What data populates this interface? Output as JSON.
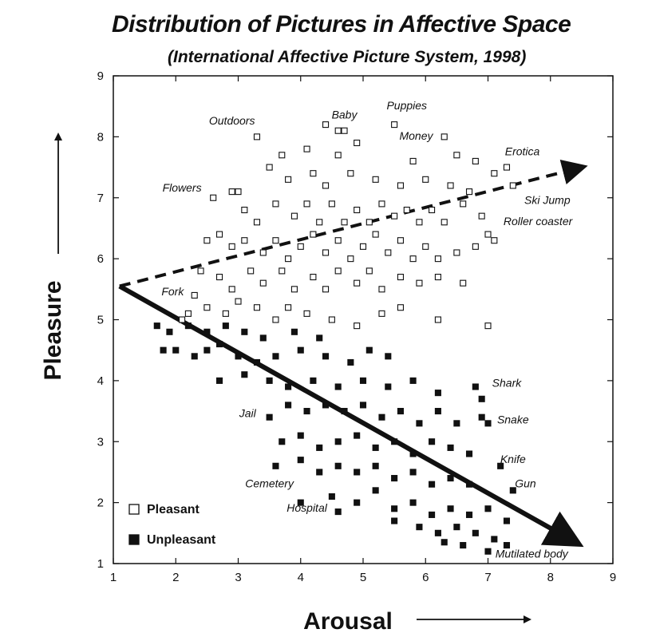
{
  "chart_data": {
    "type": "scatter",
    "title": "Distribution of Pictures in Affective Space",
    "subtitle": "(International Affective Picture System, 1998)",
    "xlabel": "Arousal",
    "ylabel": "Pleasure",
    "xlim": [
      1,
      9
    ],
    "ylim": [
      1,
      9
    ],
    "xticks": [
      "1",
      "2",
      "3",
      "4",
      "5",
      "6",
      "7",
      "8",
      "9"
    ],
    "yticks": [
      "1",
      "2",
      "3",
      "4",
      "5",
      "6",
      "7",
      "8",
      "9"
    ],
    "grid": false,
    "legend_position": "bottom-left",
    "legend": [
      {
        "name": "Pleasant",
        "marker": "open-square"
      },
      {
        "name": "Unpleasant",
        "marker": "filled-square"
      }
    ],
    "trend_lines": [
      {
        "style": "dashed",
        "from": [
          1.1,
          5.55
        ],
        "to": [
          8.5,
          7.5
        ]
      },
      {
        "style": "solid",
        "from": [
          1.1,
          5.55
        ],
        "to": [
          8.4,
          1.35
        ]
      }
    ],
    "annotations": [
      {
        "text": "Outdoors",
        "x": 2.9,
        "y": 8.2
      },
      {
        "text": "Baby",
        "x": 4.7,
        "y": 8.3
      },
      {
        "text": "Puppies",
        "x": 5.7,
        "y": 8.45
      },
      {
        "text": "Money",
        "x": 5.85,
        "y": 7.95
      },
      {
        "text": "Erotica",
        "x": 7.55,
        "y": 7.7
      },
      {
        "text": "Flowers",
        "x": 2.1,
        "y": 7.1
      },
      {
        "text": "Ski Jump",
        "x": 7.95,
        "y": 6.9
      },
      {
        "text": "Roller coaster",
        "x": 7.8,
        "y": 6.55
      },
      {
        "text": "Fork",
        "x": 1.95,
        "y": 5.4
      },
      {
        "text": "Shark",
        "x": 7.3,
        "y": 3.9
      },
      {
        "text": "Jail",
        "x": 3.15,
        "y": 3.4
      },
      {
        "text": "Snake",
        "x": 7.4,
        "y": 3.3
      },
      {
        "text": "Knife",
        "x": 7.4,
        "y": 2.65
      },
      {
        "text": "Cemetery",
        "x": 3.5,
        "y": 2.25
      },
      {
        "text": "Gun",
        "x": 7.6,
        "y": 2.25
      },
      {
        "text": "Hospital",
        "x": 4.1,
        "y": 1.85
      },
      {
        "text": "Mutilated body",
        "x": 7.7,
        "y": 1.1
      }
    ],
    "series": [
      {
        "name": "Pleasant",
        "marker": "open-square",
        "points": [
          [
            3.3,
            8.0
          ],
          [
            4.4,
            8.2
          ],
          [
            4.6,
            8.1
          ],
          [
            4.7,
            8.1
          ],
          [
            5.5,
            8.2
          ],
          [
            6.3,
            8.0
          ],
          [
            3.7,
            7.7
          ],
          [
            4.1,
            7.8
          ],
          [
            4.6,
            7.7
          ],
          [
            4.9,
            7.9
          ],
          [
            5.8,
            7.6
          ],
          [
            6.5,
            7.7
          ],
          [
            6.8,
            7.6
          ],
          [
            7.3,
            7.5
          ],
          [
            2.6,
            7.0
          ],
          [
            2.9,
            7.1
          ],
          [
            3.0,
            7.1
          ],
          [
            3.5,
            7.5
          ],
          [
            3.8,
            7.3
          ],
          [
            4.2,
            7.4
          ],
          [
            4.4,
            7.2
          ],
          [
            4.8,
            7.4
          ],
          [
            5.2,
            7.3
          ],
          [
            5.6,
            7.2
          ],
          [
            6.0,
            7.3
          ],
          [
            6.4,
            7.2
          ],
          [
            6.7,
            7.1
          ],
          [
            7.1,
            7.4
          ],
          [
            7.4,
            7.2
          ],
          [
            3.1,
            6.8
          ],
          [
            3.3,
            6.6
          ],
          [
            3.6,
            6.9
          ],
          [
            3.9,
            6.7
          ],
          [
            4.1,
            6.9
          ],
          [
            4.3,
            6.6
          ],
          [
            4.5,
            6.9
          ],
          [
            4.7,
            6.6
          ],
          [
            4.9,
            6.8
          ],
          [
            5.1,
            6.6
          ],
          [
            5.3,
            6.9
          ],
          [
            5.5,
            6.7
          ],
          [
            5.7,
            6.8
          ],
          [
            5.9,
            6.6
          ],
          [
            6.1,
            6.8
          ],
          [
            6.3,
            6.6
          ],
          [
            6.6,
            6.9
          ],
          [
            6.9,
            6.7
          ],
          [
            7.0,
            6.4
          ],
          [
            2.5,
            6.3
          ],
          [
            2.7,
            6.4
          ],
          [
            2.9,
            6.2
          ],
          [
            3.1,
            6.3
          ],
          [
            3.4,
            6.1
          ],
          [
            3.6,
            6.3
          ],
          [
            3.8,
            6.0
          ],
          [
            4.0,
            6.2
          ],
          [
            4.2,
            6.4
          ],
          [
            4.4,
            6.1
          ],
          [
            4.6,
            6.3
          ],
          [
            4.8,
            6.0
          ],
          [
            5.0,
            6.2
          ],
          [
            5.2,
            6.4
          ],
          [
            5.4,
            6.1
          ],
          [
            5.6,
            6.3
          ],
          [
            5.8,
            6.0
          ],
          [
            6.0,
            6.2
          ],
          [
            6.2,
            6.0
          ],
          [
            6.5,
            6.1
          ],
          [
            6.8,
            6.2
          ],
          [
            7.1,
            6.3
          ],
          [
            2.4,
            5.8
          ],
          [
            2.7,
            5.7
          ],
          [
            2.9,
            5.5
          ],
          [
            3.2,
            5.8
          ],
          [
            3.4,
            5.6
          ],
          [
            3.7,
            5.8
          ],
          [
            3.9,
            5.5
          ],
          [
            4.2,
            5.7
          ],
          [
            4.4,
            5.5
          ],
          [
            4.6,
            5.8
          ],
          [
            4.9,
            5.6
          ],
          [
            5.1,
            5.8
          ],
          [
            5.3,
            5.5
          ],
          [
            5.6,
            5.7
          ],
          [
            5.9,
            5.6
          ],
          [
            6.2,
            5.7
          ],
          [
            6.6,
            5.6
          ],
          [
            2.1,
            5.0
          ],
          [
            2.5,
            5.2
          ],
          [
            2.8,
            5.1
          ],
          [
            3.0,
            5.3
          ],
          [
            3.3,
            5.2
          ],
          [
            3.6,
            5.0
          ],
          [
            3.8,
            5.2
          ],
          [
            4.1,
            5.1
          ],
          [
            4.5,
            5.0
          ],
          [
            4.9,
            4.9
          ],
          [
            5.3,
            5.1
          ],
          [
            5.6,
            5.2
          ],
          [
            6.2,
            5.0
          ],
          [
            7.0,
            4.9
          ],
          [
            2.3,
            5.4
          ],
          [
            2.2,
            5.1
          ]
        ]
      },
      {
        "name": "Unpleasant",
        "marker": "filled-square",
        "points": [
          [
            1.7,
            4.9
          ],
          [
            1.9,
            4.8
          ],
          [
            2.2,
            4.9
          ],
          [
            2.5,
            4.8
          ],
          [
            2.8,
            4.9
          ],
          [
            3.1,
            4.8
          ],
          [
            3.4,
            4.7
          ],
          [
            3.9,
            4.8
          ],
          [
            4.3,
            4.7
          ],
          [
            1.8,
            4.5
          ],
          [
            2.0,
            4.5
          ],
          [
            2.3,
            4.4
          ],
          [
            2.5,
            4.5
          ],
          [
            2.7,
            4.6
          ],
          [
            3.0,
            4.4
          ],
          [
            3.3,
            4.3
          ],
          [
            3.6,
            4.4
          ],
          [
            4.0,
            4.5
          ],
          [
            4.4,
            4.4
          ],
          [
            4.8,
            4.3
          ],
          [
            5.1,
            4.5
          ],
          [
            5.4,
            4.4
          ],
          [
            2.7,
            4.0
          ],
          [
            3.1,
            4.1
          ],
          [
            3.5,
            4.0
          ],
          [
            3.8,
            3.9
          ],
          [
            4.2,
            4.0
          ],
          [
            4.6,
            3.9
          ],
          [
            5.0,
            4.0
          ],
          [
            5.4,
            3.9
          ],
          [
            5.8,
            4.0
          ],
          [
            6.2,
            3.8
          ],
          [
            6.8,
            3.9
          ],
          [
            6.9,
            3.7
          ],
          [
            3.5,
            3.4
          ],
          [
            3.8,
            3.6
          ],
          [
            4.1,
            3.5
          ],
          [
            4.4,
            3.6
          ],
          [
            4.7,
            3.5
          ],
          [
            5.0,
            3.6
          ],
          [
            5.3,
            3.4
          ],
          [
            5.6,
            3.5
          ],
          [
            5.9,
            3.3
          ],
          [
            6.2,
            3.5
          ],
          [
            6.5,
            3.3
          ],
          [
            6.9,
            3.4
          ],
          [
            7.0,
            3.3
          ],
          [
            3.7,
            3.0
          ],
          [
            4.0,
            3.1
          ],
          [
            4.3,
            2.9
          ],
          [
            4.6,
            3.0
          ],
          [
            4.9,
            3.1
          ],
          [
            5.2,
            2.9
          ],
          [
            5.5,
            3.0
          ],
          [
            5.8,
            2.8
          ],
          [
            6.1,
            3.0
          ],
          [
            6.4,
            2.9
          ],
          [
            6.7,
            2.8
          ],
          [
            3.6,
            2.6
          ],
          [
            4.0,
            2.7
          ],
          [
            4.3,
            2.5
          ],
          [
            4.6,
            2.6
          ],
          [
            4.9,
            2.5
          ],
          [
            5.2,
            2.6
          ],
          [
            5.5,
            2.4
          ],
          [
            5.8,
            2.5
          ],
          [
            6.1,
            2.3
          ],
          [
            6.4,
            2.4
          ],
          [
            6.7,
            2.3
          ],
          [
            7.2,
            2.6
          ],
          [
            7.4,
            2.2
          ],
          [
            4.0,
            2.0
          ],
          [
            4.5,
            2.1
          ],
          [
            4.9,
            2.0
          ],
          [
            5.2,
            2.2
          ],
          [
            5.5,
            1.9
          ],
          [
            5.8,
            2.0
          ],
          [
            6.1,
            1.8
          ],
          [
            6.4,
            1.9
          ],
          [
            6.7,
            1.8
          ],
          [
            7.0,
            1.9
          ],
          [
            7.3,
            1.7
          ],
          [
            4.6,
            1.85
          ],
          [
            5.5,
            1.7
          ],
          [
            5.9,
            1.6
          ],
          [
            6.2,
            1.5
          ],
          [
            6.5,
            1.6
          ],
          [
            6.8,
            1.5
          ],
          [
            7.1,
            1.4
          ],
          [
            6.3,
            1.35
          ],
          [
            6.6,
            1.3
          ],
          [
            7.0,
            1.2
          ],
          [
            7.3,
            1.3
          ]
        ]
      }
    ]
  }
}
